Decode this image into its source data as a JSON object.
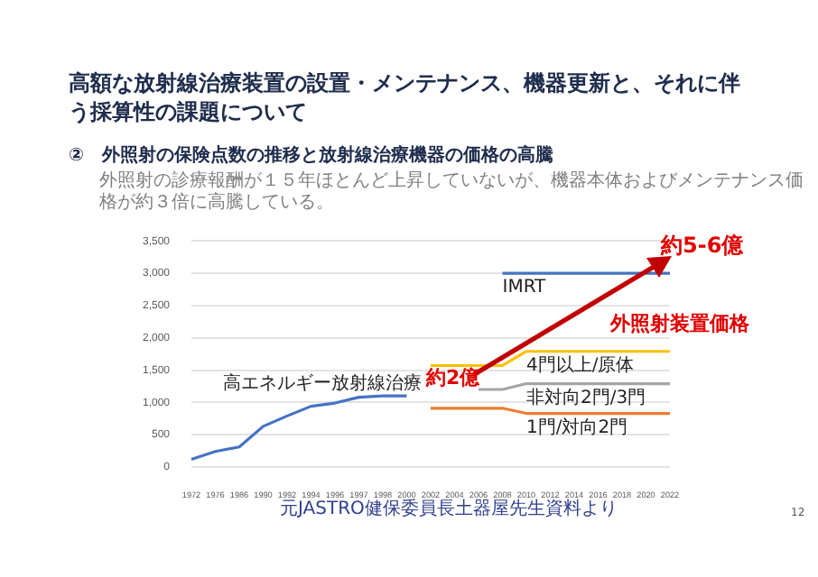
{
  "chart_data": {
    "type": "line",
    "title": "高額な放射線治療装置の設置・メンテナンス、機器更新と、それに伴う採算性の課題について",
    "subtitle": "②　外照射の保険点数の推移と放射線治療機器の価格の高騰",
    "categories": [
      "1972",
      "1976",
      "1986",
      "1990",
      "1992",
      "1994",
      "1996",
      "1997",
      "1998",
      "2000",
      "2002",
      "2004",
      "2006",
      "2008",
      "2010",
      "2012",
      "2014",
      "2016",
      "2018",
      "2020",
      "2022"
    ],
    "series": [
      {
        "name": "高エネルギー放射線治療",
        "color": "#4472c4",
        "values": [
          120,
          240,
          310,
          630,
          790,
          940,
          990,
          1080,
          1100,
          1100,
          null,
          null,
          null,
          null,
          null,
          null,
          null,
          null,
          null,
          null,
          null
        ]
      },
      {
        "name": "IMRT",
        "color": "#4472c4",
        "values": [
          null,
          null,
          null,
          null,
          null,
          null,
          null,
          null,
          null,
          null,
          null,
          null,
          null,
          3000,
          3000,
          3000,
          3000,
          3000,
          3000,
          3000,
          3000
        ]
      },
      {
        "name": "4門以上/原体",
        "color": "#ffc000",
        "values": [
          null,
          null,
          null,
          null,
          null,
          null,
          null,
          null,
          null,
          null,
          1570,
          1570,
          1570,
          1570,
          1790,
          1790,
          1790,
          1790,
          1790,
          1790,
          1790
        ]
      },
      {
        "name": "非対向2門/3門",
        "color": "#a5a5a5",
        "values": [
          null,
          null,
          null,
          null,
          null,
          null,
          null,
          null,
          null,
          null,
          null,
          null,
          1200,
          1200,
          1290,
          1290,
          1290,
          1290,
          1290,
          1290,
          1290
        ]
      },
      {
        "name": "1門/対向2門",
        "color": "#ed7d31",
        "values": [
          null,
          null,
          null,
          null,
          null,
          null,
          null,
          null,
          null,
          null,
          910,
          910,
          910,
          910,
          830,
          830,
          830,
          830,
          830,
          830,
          830
        ]
      }
    ],
    "ylim": [
      0,
      3500
    ],
    "yticks": [
      0,
      500,
      {
        "value": 1000,
        "label": "1,000"
      },
      {
        "value": 1500,
        "label": "1,500"
      },
      {
        "value": 2000,
        "label": "2,000"
      },
      {
        "value": 2500,
        "label": "2,500"
      },
      {
        "value": 3000,
        "label": "3,000"
      },
      {
        "value": 3500,
        "label": "3,500"
      }
    ],
    "grid": "y",
    "marker": "none",
    "line_style": "solid",
    "annotations": [
      "外照射の診療報酬が１５年ほとんど上昇していないが、機器本体およびメンテナンス価格が約３倍に高騰している。",
      "約2億",
      "約5-6億",
      "外照射装置価格",
      "元JASTRO健保委員長土器屋先生資料より",
      "12"
    ]
  }
}
